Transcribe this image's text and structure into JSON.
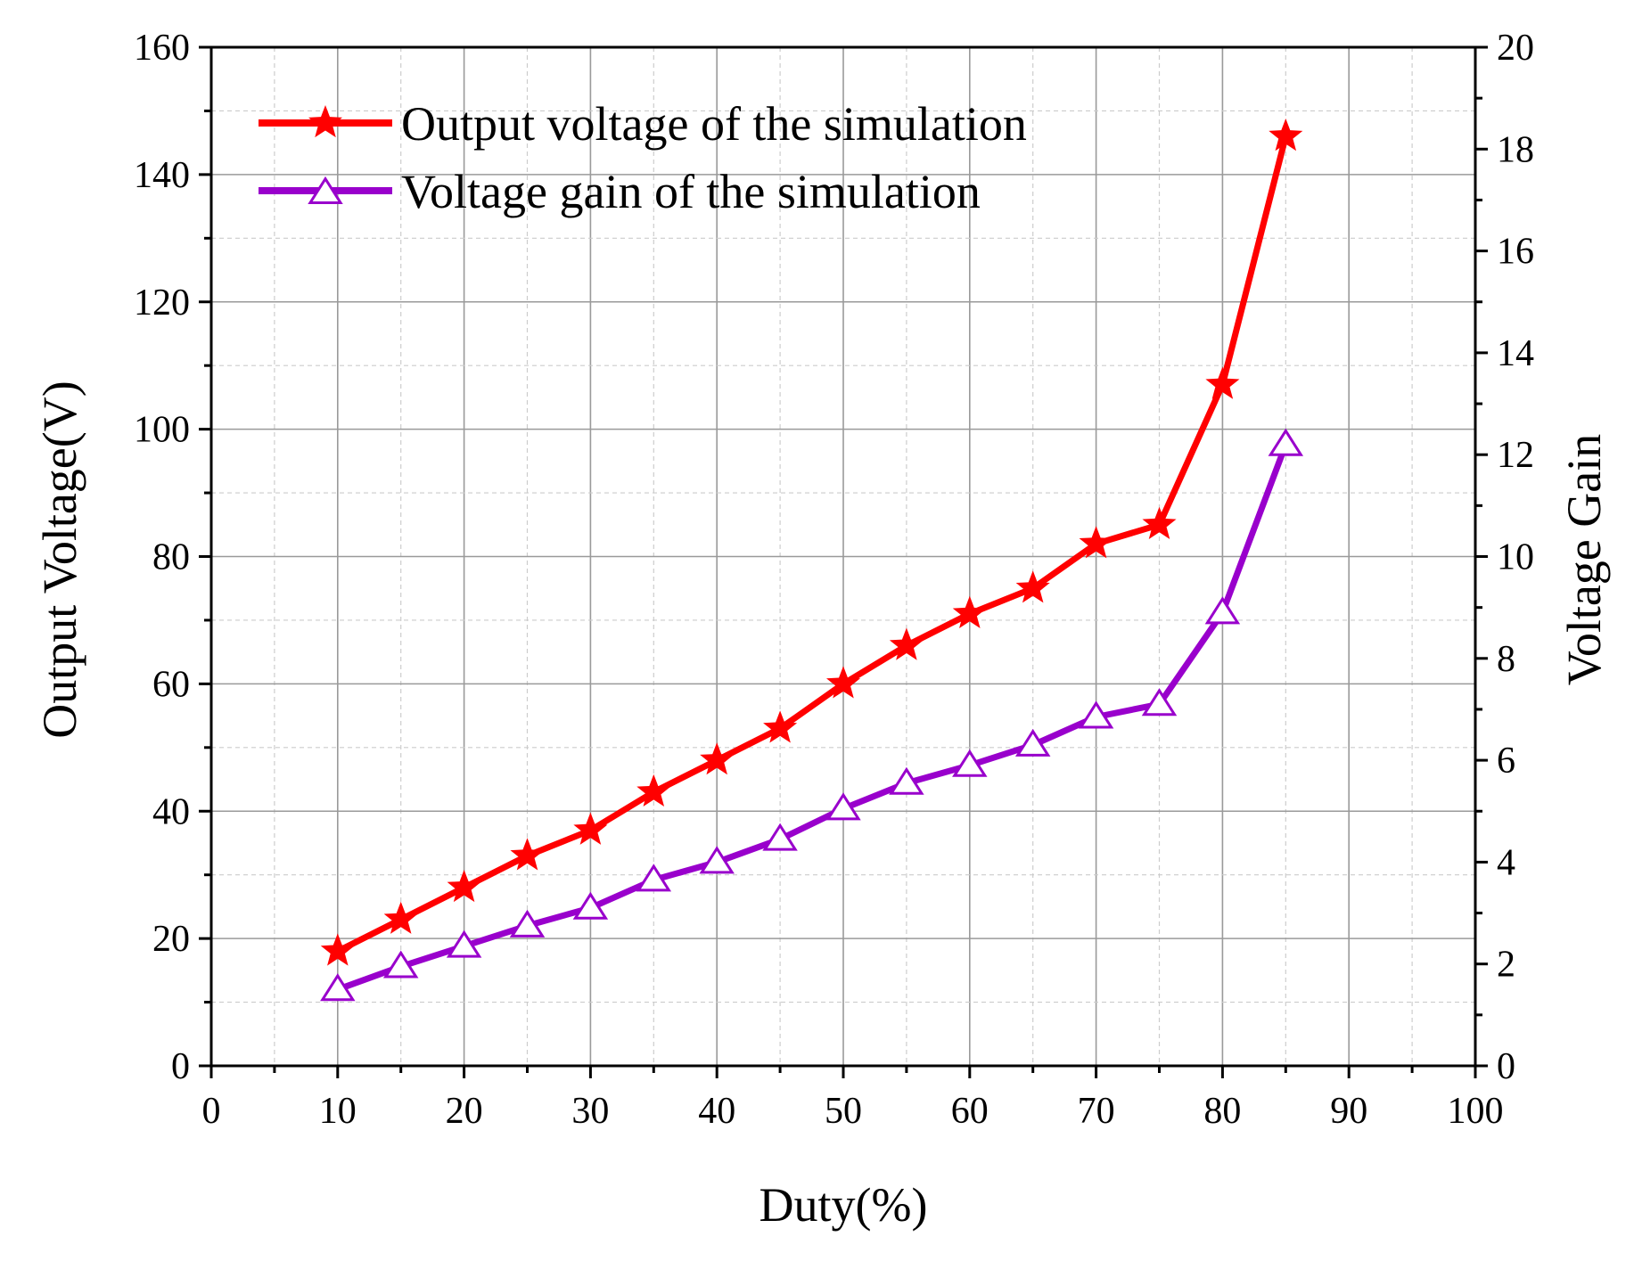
{
  "chart_data": {
    "type": "line",
    "title": "",
    "xlabel": "Duty(%)",
    "ylabel_left": "Output Voltage(V)",
    "ylabel_right": "Voltage Gain",
    "xlim": [
      0,
      100
    ],
    "ylim_left": [
      0,
      160
    ],
    "ylim_right": [
      0,
      20
    ],
    "x_ticks": [
      "0",
      "10",
      "20",
      "30",
      "40",
      "50",
      "60",
      "70",
      "80",
      "90",
      "100"
    ],
    "y_left_ticks": [
      "0",
      "20",
      "40",
      "60",
      "80",
      "100",
      "120",
      "140",
      "160"
    ],
    "y_right_ticks": [
      "0",
      "2",
      "4",
      "6",
      "8",
      "10",
      "12",
      "14",
      "16",
      "18",
      "20"
    ],
    "grid": true,
    "legend_position": "top-left",
    "x": [
      10,
      15,
      20,
      25,
      30,
      35,
      40,
      45,
      50,
      55,
      60,
      65,
      70,
      75,
      80,
      85
    ],
    "series": [
      {
        "name": "Output voltage of the simulation",
        "axis": "left",
        "color": "#ff0000",
        "marker": "star",
        "values": [
          18,
          23,
          28,
          33,
          37,
          43,
          48,
          53,
          60,
          66,
          71,
          75,
          82,
          85,
          107,
          146
        ]
      },
      {
        "name": "Voltage gain of the simulation",
        "axis": "right",
        "color": "#9900cc",
        "marker": "triangle-open",
        "values": [
          1.5,
          1.95,
          2.35,
          2.75,
          3.1,
          3.65,
          4.0,
          4.45,
          5.05,
          5.55,
          5.9,
          6.3,
          6.85,
          7.1,
          8.9,
          12.2
        ]
      }
    ]
  }
}
